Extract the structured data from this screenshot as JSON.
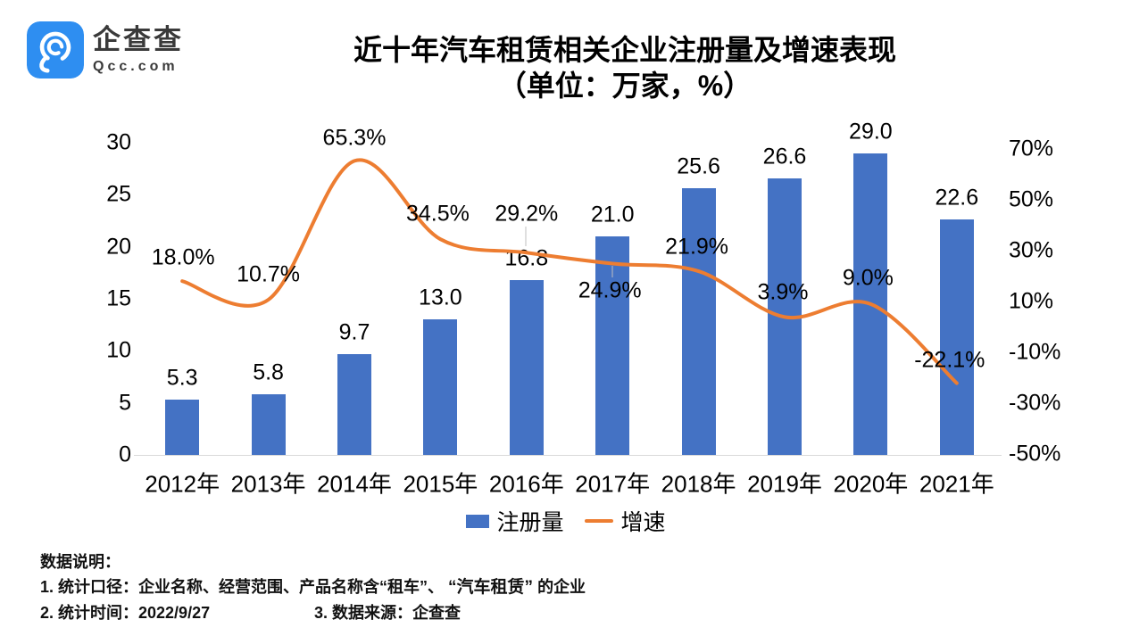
{
  "logo": {
    "name": "企查查",
    "domain": "Qcc.com",
    "brand_color": "#2e8ef1"
  },
  "title": {
    "line1": "近十年汽车租赁相关企业注册量及增速表现",
    "line2": "（单位：万家，%）"
  },
  "chart_data": {
    "type": "bar",
    "subtype": "bar+line combo, dual axis",
    "categories": [
      "2012年",
      "2013年",
      "2014年",
      "2015年",
      "2016年",
      "2017年",
      "2018年",
      "2019年",
      "2020年",
      "2021年"
    ],
    "series": [
      {
        "name": "注册量",
        "type": "bar",
        "axis": "left",
        "unit": "万家",
        "color": "#4472c4",
        "values": [
          5.3,
          5.8,
          9.7,
          13.0,
          16.8,
          21.0,
          25.6,
          26.6,
          29.0,
          22.6
        ],
        "labels": [
          "5.3",
          "5.8",
          "9.7",
          "13.0",
          "16.8",
          "21.0",
          "25.6",
          "26.6",
          "29.0",
          "22.6"
        ]
      },
      {
        "name": "增速",
        "type": "line",
        "axis": "right",
        "unit": "%",
        "color": "#ed7d31",
        "values": [
          18.0,
          10.7,
          65.3,
          34.5,
          29.2,
          24.9,
          21.9,
          3.9,
          9.0,
          -22.1
        ],
        "labels": [
          "18.0%",
          "10.7%",
          "65.3%",
          "34.5%",
          "29.2%",
          "24.9%",
          "21.9%",
          "3.9%",
          "9.0%",
          "-22.1%"
        ]
      }
    ],
    "left_axis": {
      "ticks": [
        "0",
        "5",
        "10",
        "15",
        "20",
        "25",
        "30"
      ],
      "min": 0,
      "max": 30
    },
    "right_axis": {
      "ticks": [
        "-50%",
        "-30%",
        "-10%",
        "10%",
        "30%",
        "50%",
        "70%"
      ],
      "min": -50,
      "max": 70
    },
    "grid": false,
    "legend_position": "bottom",
    "title": "近十年汽车租赁相关企业注册量及增速表现（单位：万家，%）"
  },
  "notes": {
    "heading": "数据说明：",
    "line1_prefix": "1. 统计口径：企业名称、经营范围、产品名称含“租车”、",
    "line1_bold": "“汽车租赁”",
    "line1_suffix": "的企业",
    "line2": "2. 统计时间：2022/9/27",
    "line3": "3. 数据来源：企查查"
  }
}
